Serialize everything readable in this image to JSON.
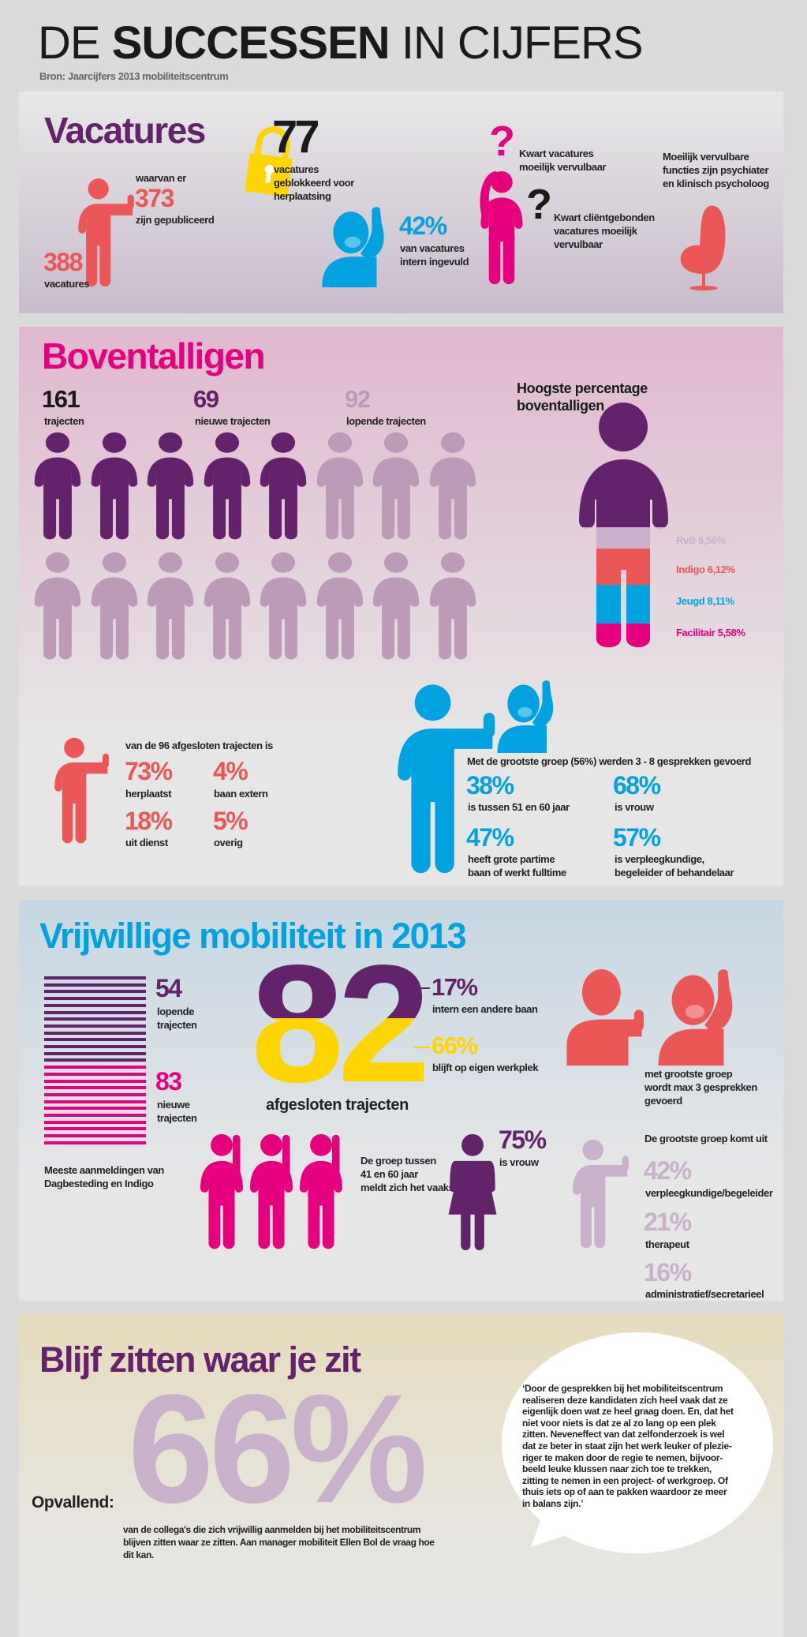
{
  "header": {
    "title_light_1": "DE",
    "title_bold": "SUCCESSEN",
    "title_light_2": "IN CIJFERS",
    "source": "Bron: Jaarcijfers 2013 mobiliteitscentrum"
  },
  "colors": {
    "purple": "#62236a",
    "pink": "#e6007e",
    "red": "#eb5757",
    "blue": "#00a3e0",
    "yellow": "#ffd500",
    "lavender": "#c9b1cc",
    "mauve": "#bd9ab8"
  },
  "vacatures": {
    "title": "Vacatures",
    "total_value": "388",
    "total_label": "vacatures",
    "published_pre": "waarvan er",
    "published_value": "373",
    "published_label": "zijn gepubliceerd",
    "blocked_value": "77",
    "blocked_label": "vacatures\ngeblokkeerd voor\nherplaatsing",
    "intern_value": "42%",
    "intern_label": "van vacatures\nintern ingevuld",
    "question1_mark": "?",
    "question1_label": "Kwart vacatures\nmoeilijk vervulbaar",
    "question2_mark": "?",
    "question2_label": "Kwart cliëntgebonden\nvacatures moeilijk\nvervulbaar",
    "hard_label": "Moeilijk vervulbare\nfuncties zijn psychiater\nen klinisch psycholoog",
    "icons": [
      "person-pointing-icon",
      "lock-icon",
      "person-raising-hand-icon",
      "question-mark-icon",
      "thinking-person-icon",
      "egg-chair-icon"
    ]
  },
  "boventalligen": {
    "title": "Boventalligen",
    "stats": [
      {
        "value": "161",
        "label": "trajecten"
      },
      {
        "value": "69",
        "label": "nieuwe trajecten"
      },
      {
        "value": "92",
        "label": "lopende trajecten"
      }
    ],
    "pictogram": {
      "rows": 2,
      "per_row": 8,
      "dark_count": 5
    },
    "highest_title": "Hoogste percentage\nboventalligen",
    "highest": [
      {
        "label": "RvB 5,56%",
        "color": "#c9b1cc"
      },
      {
        "label": "Indigo 6,12%",
        "color": "#eb5757"
      },
      {
        "label": "Jeugd 8,11%",
        "color": "#00a3e0"
      },
      {
        "label": "Facilitair 5,58%",
        "color": "#e6007e"
      }
    ],
    "closed_intro": "van de 96 afgesloten trajecten is",
    "closed": [
      {
        "value": "73%",
        "label": "herplaatst"
      },
      {
        "value": "4%",
        "label": "baan extern"
      },
      {
        "value": "18%",
        "label": "uit dienst"
      },
      {
        "value": "5%",
        "label": "overig"
      }
    ],
    "group_intro": "Met de grootste groep (56%) werden 3 - 8 gesprekken gevoerd",
    "group": [
      {
        "value": "38%",
        "label": "is tussen 51 en 60 jaar"
      },
      {
        "value": "68%",
        "label": "is vrouw"
      },
      {
        "value": "47%",
        "label": "heeft grote partime\nbaan of werkt fulltime"
      },
      {
        "value": "57%",
        "label": "is verpleegkundige,\nbegeleider of behandelaar"
      }
    ]
  },
  "vrijwillig": {
    "title": "Vrijwillige mobiliteit in 2013",
    "running_value": "54",
    "running_label": "lopende\ntrajecten",
    "new_value": "83",
    "new_label": "nieuwe\ntrajecten",
    "most_label": "Meeste aanmeldingen van\nDagbesteding en Indigo",
    "closed_value": "82",
    "closed_label": "afgesloten trajecten",
    "intern_value": "17%",
    "intern_label": "intern een andere baan",
    "stay_value": "66%",
    "stay_label": "blijft op eigen werkplek",
    "talk_label": "met grootste groep\nwordt max 3 gesprekken\ngevoerd",
    "age_label": "De groep tussen\n41 en 60 jaar\nmeldt zich het vaakst",
    "female_value": "75%",
    "female_label": "is vrouw",
    "origin_intro": "De grootste groep komt uit",
    "origin": [
      {
        "value": "42%",
        "label": "verpleegkundige/begeleider"
      },
      {
        "value": "21%",
        "label": "therapeut"
      },
      {
        "value": "16%",
        "label": "administratief/secretarieel"
      }
    ]
  },
  "blijf": {
    "title": "Blijf zitten waar je zit",
    "lead": "Opvallend:",
    "value": "66%",
    "description": "van de collega's die zich vrijwillig aanmelden bij het mobiliteitscentrum\nblijven zitten waar ze zitten. Aan manager mobiliteit Ellen Bol de vraag hoe\ndit kan.",
    "quote": "‘Door de gesprekken bij het mobiliteitscentrum\nrealiseren deze kandidaten zich heel vaak dat ze\neigenlijk doen wat ze heel graag doen. En, dat het\nniet voor niets is dat ze al zo lang op een plek\nzitten. Neveneffect van dat zelfonderzoek is wel\ndat ze beter in staat zijn het werk leuker of plezie-\nriger te maken door de regie te nemen, bijvoor-\nbeeld leuke klussen naar zich toe te trekken,\nzitting te nemen in een project- of werkgroep. Of\nthuis iets op of aan te pakken waardoor ze meer\nin balans zijn.’"
  }
}
